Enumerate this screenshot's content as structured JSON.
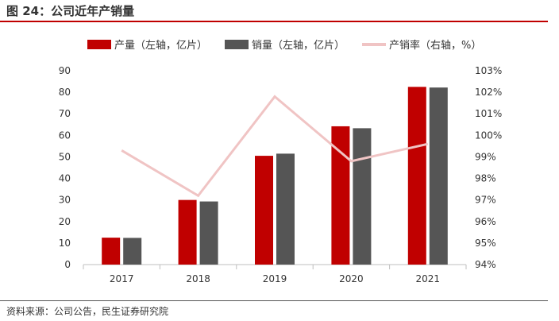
{
  "figure": {
    "title": "图 24：公司近年产销量",
    "source": "资料来源：公司公告，民生证券研究院"
  },
  "colors": {
    "accent": "#c00000",
    "production": "#c00000",
    "sales": "#555555",
    "rate": "#f0c4c4"
  },
  "chart_data": {
    "type": "bar",
    "categories": [
      "2017",
      "2018",
      "2019",
      "2020",
      "2021"
    ],
    "series": [
      {
        "name": "产量（左轴，亿片）",
        "axis": "left",
        "kind": "bar",
        "values": [
          12.5,
          30,
          50.5,
          64.2,
          82.5
        ]
      },
      {
        "name": "销量（左轴，亿片）",
        "axis": "left",
        "kind": "bar",
        "values": [
          12.4,
          29.3,
          51.5,
          63.3,
          82.2
        ]
      },
      {
        "name": "产销率（右轴，%）",
        "axis": "right",
        "kind": "line",
        "values": [
          99.3,
          97.2,
          101.8,
          98.8,
          99.6
        ]
      }
    ],
    "yleft": {
      "lim": [
        0,
        90
      ],
      "ticks": [
        "0",
        "10",
        "20",
        "30",
        "40",
        "50",
        "60",
        "70",
        "80",
        "90"
      ]
    },
    "yright": {
      "lim": [
        94,
        103
      ],
      "ticks": [
        "94%",
        "95%",
        "96%",
        "97%",
        "98%",
        "99%",
        "100%",
        "101%",
        "102%",
        "103%"
      ]
    },
    "legend_position": "top"
  }
}
